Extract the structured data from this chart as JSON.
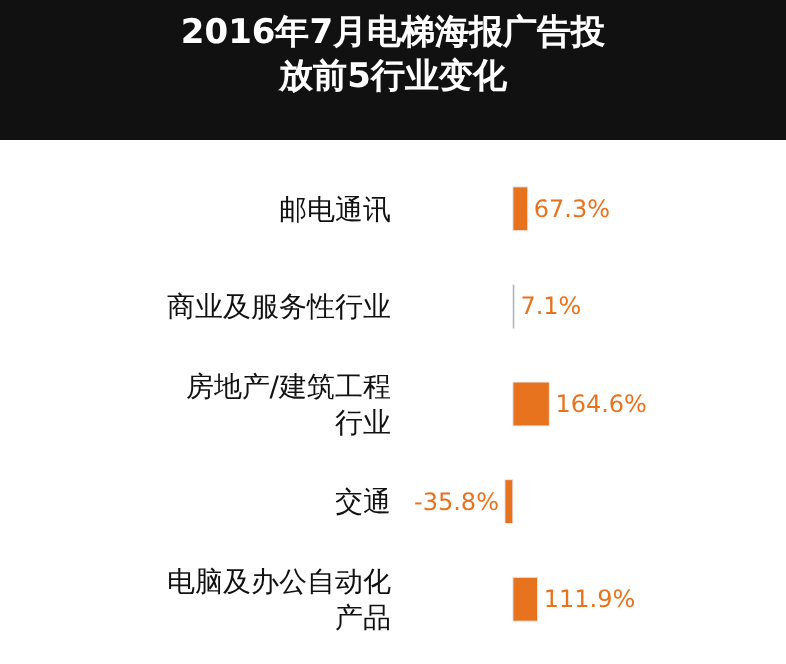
{
  "chart_data": {
    "type": "bar",
    "orientation": "horizontal",
    "title": "2016年7月电梯海报广告投放前5行业变化",
    "categories": [
      "邮电通讯",
      "商业及服务性行业",
      "房地产/建筑工程行业",
      "交通",
      "电脑及办公自动化产品"
    ],
    "values": [
      67.3,
      7.1,
      164.6,
      -35.8,
      111.9
    ],
    "value_labels": [
      "67.3%",
      "7.1%",
      "164.6%",
      "-35.8%",
      "111.9%"
    ],
    "color": "#e8731f"
  }
}
